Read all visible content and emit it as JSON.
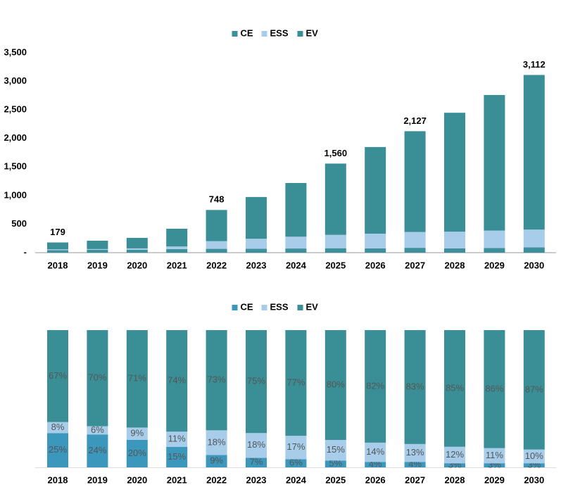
{
  "chart_data": [
    {
      "type": "stacked_bar",
      "categories": [
        "2018",
        "2019",
        "2020",
        "2021",
        "2022",
        "2023",
        "2024",
        "2025",
        "2026",
        "2027",
        "2028",
        "2029",
        "2030"
      ],
      "series": [
        {
          "name": "CE",
          "color": "#3d8f9b",
          "values": [
            45,
            50,
            52,
            63,
            67,
            68,
            73,
            78,
            74,
            85,
            74,
            83,
            93
          ]
        },
        {
          "name": "ESS",
          "color": "#a7cdea",
          "values": [
            14,
            13,
            23,
            46,
            135,
            176,
            207,
            234,
            259,
            277,
            294,
            304,
            311
          ]
        },
        {
          "name": "EV",
          "color": "#3a8f96",
          "values": [
            120,
            147,
            185,
            311,
            546,
            731,
            940,
            1248,
            1517,
            1765,
            2082,
            2374,
            2708
          ]
        }
      ],
      "totals": [
        179,
        null,
        null,
        null,
        748,
        null,
        null,
        1560,
        null,
        2127,
        null,
        null,
        3112
      ],
      "total_labels": [
        "179",
        null,
        null,
        null,
        "748",
        null,
        null,
        "1,560",
        null,
        "2,127",
        null,
        null,
        "3,112"
      ],
      "ylim": [
        0,
        3500
      ],
      "yticks": [
        {
          "value": 0,
          "label": "-"
        },
        500,
        {
          "value": 1000,
          "label": "1,000"
        },
        {
          "value": 1500,
          "label": "1,500"
        },
        {
          "value": 2000,
          "label": "2,000"
        },
        {
          "value": 2500,
          "label": "2,500"
        },
        {
          "value": 3000,
          "label": "3,000"
        },
        {
          "value": 3500,
          "label": "3,500"
        }
      ]
    },
    {
      "type": "stacked_bar",
      "categories": [
        "2018",
        "2019",
        "2020",
        "2021",
        "2022",
        "2023",
        "2024",
        "2025",
        "2026",
        "2027",
        "2028",
        "2029",
        "2030"
      ],
      "series": [
        {
          "name": "CE",
          "color": "#3c97bd",
          "values": [
            25,
            24,
            20,
            15,
            9,
            7,
            6,
            5,
            4,
            4,
            3,
            3,
            3
          ],
          "value_labels": [
            "25%",
            "24%",
            "20%",
            "15%",
            "9%",
            "7%",
            "6%",
            "5%",
            "4%",
            "4%",
            "3%",
            "3%",
            "3%"
          ]
        },
        {
          "name": "ESS",
          "color": "#a7cdea",
          "values": [
            8,
            6,
            9,
            11,
            18,
            18,
            17,
            15,
            14,
            13,
            12,
            11,
            10
          ],
          "value_labels": [
            "8%",
            "6%",
            "9%",
            "11%",
            "18%",
            "18%",
            "17%",
            "15%",
            "14%",
            "13%",
            "12%",
            "11%",
            "10%"
          ]
        },
        {
          "name": "EV",
          "color": "#3a8f96",
          "values": [
            67,
            70,
            71,
            74,
            73,
            75,
            77,
            80,
            82,
            83,
            85,
            86,
            87
          ],
          "value_labels": [
            "67%",
            "70%",
            "71%",
            "74%",
            "73%",
            "75%",
            "77%",
            "80%",
            "82%",
            "83%",
            "85%",
            "86%",
            "87%"
          ]
        }
      ],
      "ylim": [
        0,
        100
      ]
    }
  ]
}
